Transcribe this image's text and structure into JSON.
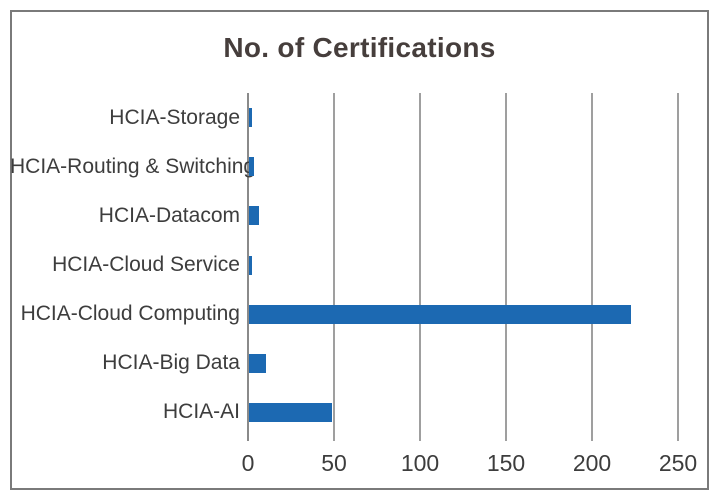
{
  "chart_data": {
    "type": "bar",
    "orientation": "horizontal",
    "title": "No. of Certifications",
    "categories": [
      "HCIA-Storage",
      "HCIA-Routing & Switching",
      "HCIA-Datacom",
      "HCIA-Cloud Service",
      "HCIA-Cloud Computing",
      "HCIA-Big Data",
      "HCIA-AI"
    ],
    "values": [
      2,
      3,
      6,
      2,
      222,
      10,
      48
    ],
    "x_ticks": [
      0,
      50,
      100,
      150,
      200,
      250
    ],
    "xlim": [
      0,
      250
    ],
    "xlabel": "",
    "ylabel": "",
    "grid": "vertical-only",
    "legend": "none",
    "colors": {
      "bar": "#1c69b2",
      "gridline": "#9f9f9f",
      "axis_line": "#8a8a8a",
      "frame_border": "#7a7a7a",
      "title_text": "#463e3c",
      "label_text": "#3d3d3d",
      "background": "#ffffff"
    }
  }
}
